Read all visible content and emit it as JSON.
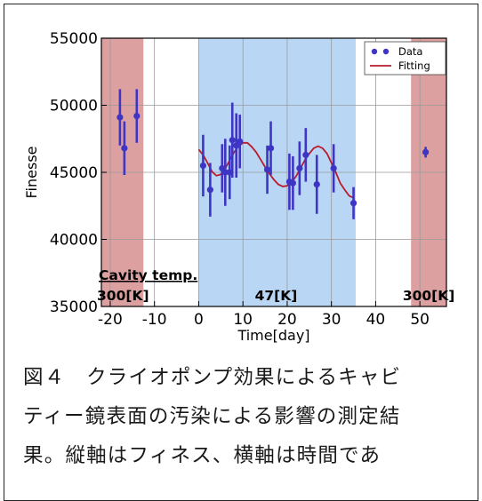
{
  "chart_data": {
    "type": "scatter",
    "xlabel": "Time[day]",
    "ylabel": "Finesse",
    "xlim": [
      -22,
      56
    ],
    "ylim": [
      35000,
      55000
    ],
    "x_ticks": [
      -20,
      -10,
      0,
      10,
      20,
      30,
      40,
      50
    ],
    "y_ticks": [
      35000,
      40000,
      45000,
      50000,
      55000
    ],
    "grid": true,
    "legend_position": "top-right",
    "regions": [
      {
        "x_start": -22,
        "x_end": -12.5,
        "color": "#dca0a0",
        "label": "300[K]"
      },
      {
        "x_start": 0,
        "x_end": 35.5,
        "color": "#b9d7f5",
        "label": "47[K]"
      },
      {
        "x_start": 48,
        "x_end": 56,
        "color": "#dca0a0",
        "label": "300[K]"
      }
    ],
    "region_title": "Cavity temp.",
    "series": [
      {
        "name": "Data",
        "kind": "points",
        "color": "#3f35c4",
        "points": [
          {
            "x": -17.8,
            "y": 49100,
            "err": 2100
          },
          {
            "x": -16.8,
            "y": 46800,
            "err": 2000
          },
          {
            "x": -14.0,
            "y": 49200,
            "err": 2000
          },
          {
            "x": 1.0,
            "y": 45500,
            "err": 2300
          },
          {
            "x": 2.6,
            "y": 43700,
            "err": 2000
          },
          {
            "x": 5.3,
            "y": 45300,
            "err": 1800
          },
          {
            "x": 6.0,
            "y": 45000,
            "err": 2500
          },
          {
            "x": 7.0,
            "y": 45000,
            "err": 2000
          },
          {
            "x": 7.6,
            "y": 47400,
            "err": 2800
          },
          {
            "x": 8.5,
            "y": 47000,
            "err": 2400
          },
          {
            "x": 9.3,
            "y": 47300,
            "err": 2000
          },
          {
            "x": 15.5,
            "y": 45200,
            "err": 1800
          },
          {
            "x": 16.3,
            "y": 46800,
            "err": 2000
          },
          {
            "x": 20.5,
            "y": 44300,
            "err": 2100
          },
          {
            "x": 21.3,
            "y": 44200,
            "err": 2000
          },
          {
            "x": 22.8,
            "y": 45300,
            "err": 2000
          },
          {
            "x": 24.2,
            "y": 46300,
            "err": 2000
          },
          {
            "x": 26.7,
            "y": 44100,
            "err": 2200
          },
          {
            "x": 30.5,
            "y": 45300,
            "err": 1800
          },
          {
            "x": 35.0,
            "y": 42700,
            "err": 1200
          },
          {
            "x": 51.3,
            "y": 46500,
            "err": 400
          }
        ]
      },
      {
        "name": "Fitting",
        "kind": "line",
        "color": "#b81c2c",
        "points": [
          {
            "x": 0,
            "y": 46700
          },
          {
            "x": 1,
            "y": 46300
          },
          {
            "x": 2,
            "y": 45700
          },
          {
            "x": 3,
            "y": 45050
          },
          {
            "x": 4,
            "y": 44750
          },
          {
            "x": 5,
            "y": 44850
          },
          {
            "x": 6,
            "y": 45300
          },
          {
            "x": 7,
            "y": 45900
          },
          {
            "x": 8,
            "y": 46500
          },
          {
            "x": 9,
            "y": 46950
          },
          {
            "x": 10,
            "y": 47200
          },
          {
            "x": 11,
            "y": 47200
          },
          {
            "x": 12,
            "y": 46900
          },
          {
            "x": 13,
            "y": 46500
          },
          {
            "x": 14,
            "y": 45950
          },
          {
            "x": 15,
            "y": 45400
          },
          {
            "x": 16,
            "y": 44900
          },
          {
            "x": 17,
            "y": 44450
          },
          {
            "x": 18,
            "y": 44100
          },
          {
            "x": 19,
            "y": 43950
          },
          {
            "x": 20,
            "y": 44000
          },
          {
            "x": 21,
            "y": 44250
          },
          {
            "x": 22,
            "y": 44700
          },
          {
            "x": 23,
            "y": 45300
          },
          {
            "x": 24,
            "y": 45900
          },
          {
            "x": 25,
            "y": 46400
          },
          {
            "x": 26,
            "y": 46800
          },
          {
            "x": 27,
            "y": 46950
          },
          {
            "x": 28,
            "y": 46800
          },
          {
            "x": 29,
            "y": 46400
          },
          {
            "x": 30,
            "y": 45700
          },
          {
            "x": 31,
            "y": 45000
          },
          {
            "x": 32,
            "y": 44200
          },
          {
            "x": 33,
            "y": 43700
          },
          {
            "x": 34,
            "y": 43250
          },
          {
            "x": 35,
            "y": 43100
          }
        ]
      }
    ]
  },
  "caption": {
    "line1": "図４　クライオポンプ効果によるキャビ",
    "line2": "ティー鏡表面の汚染による影響の測定結",
    "line3": "果。縦軸はフィネス、横軸は時間であ"
  }
}
